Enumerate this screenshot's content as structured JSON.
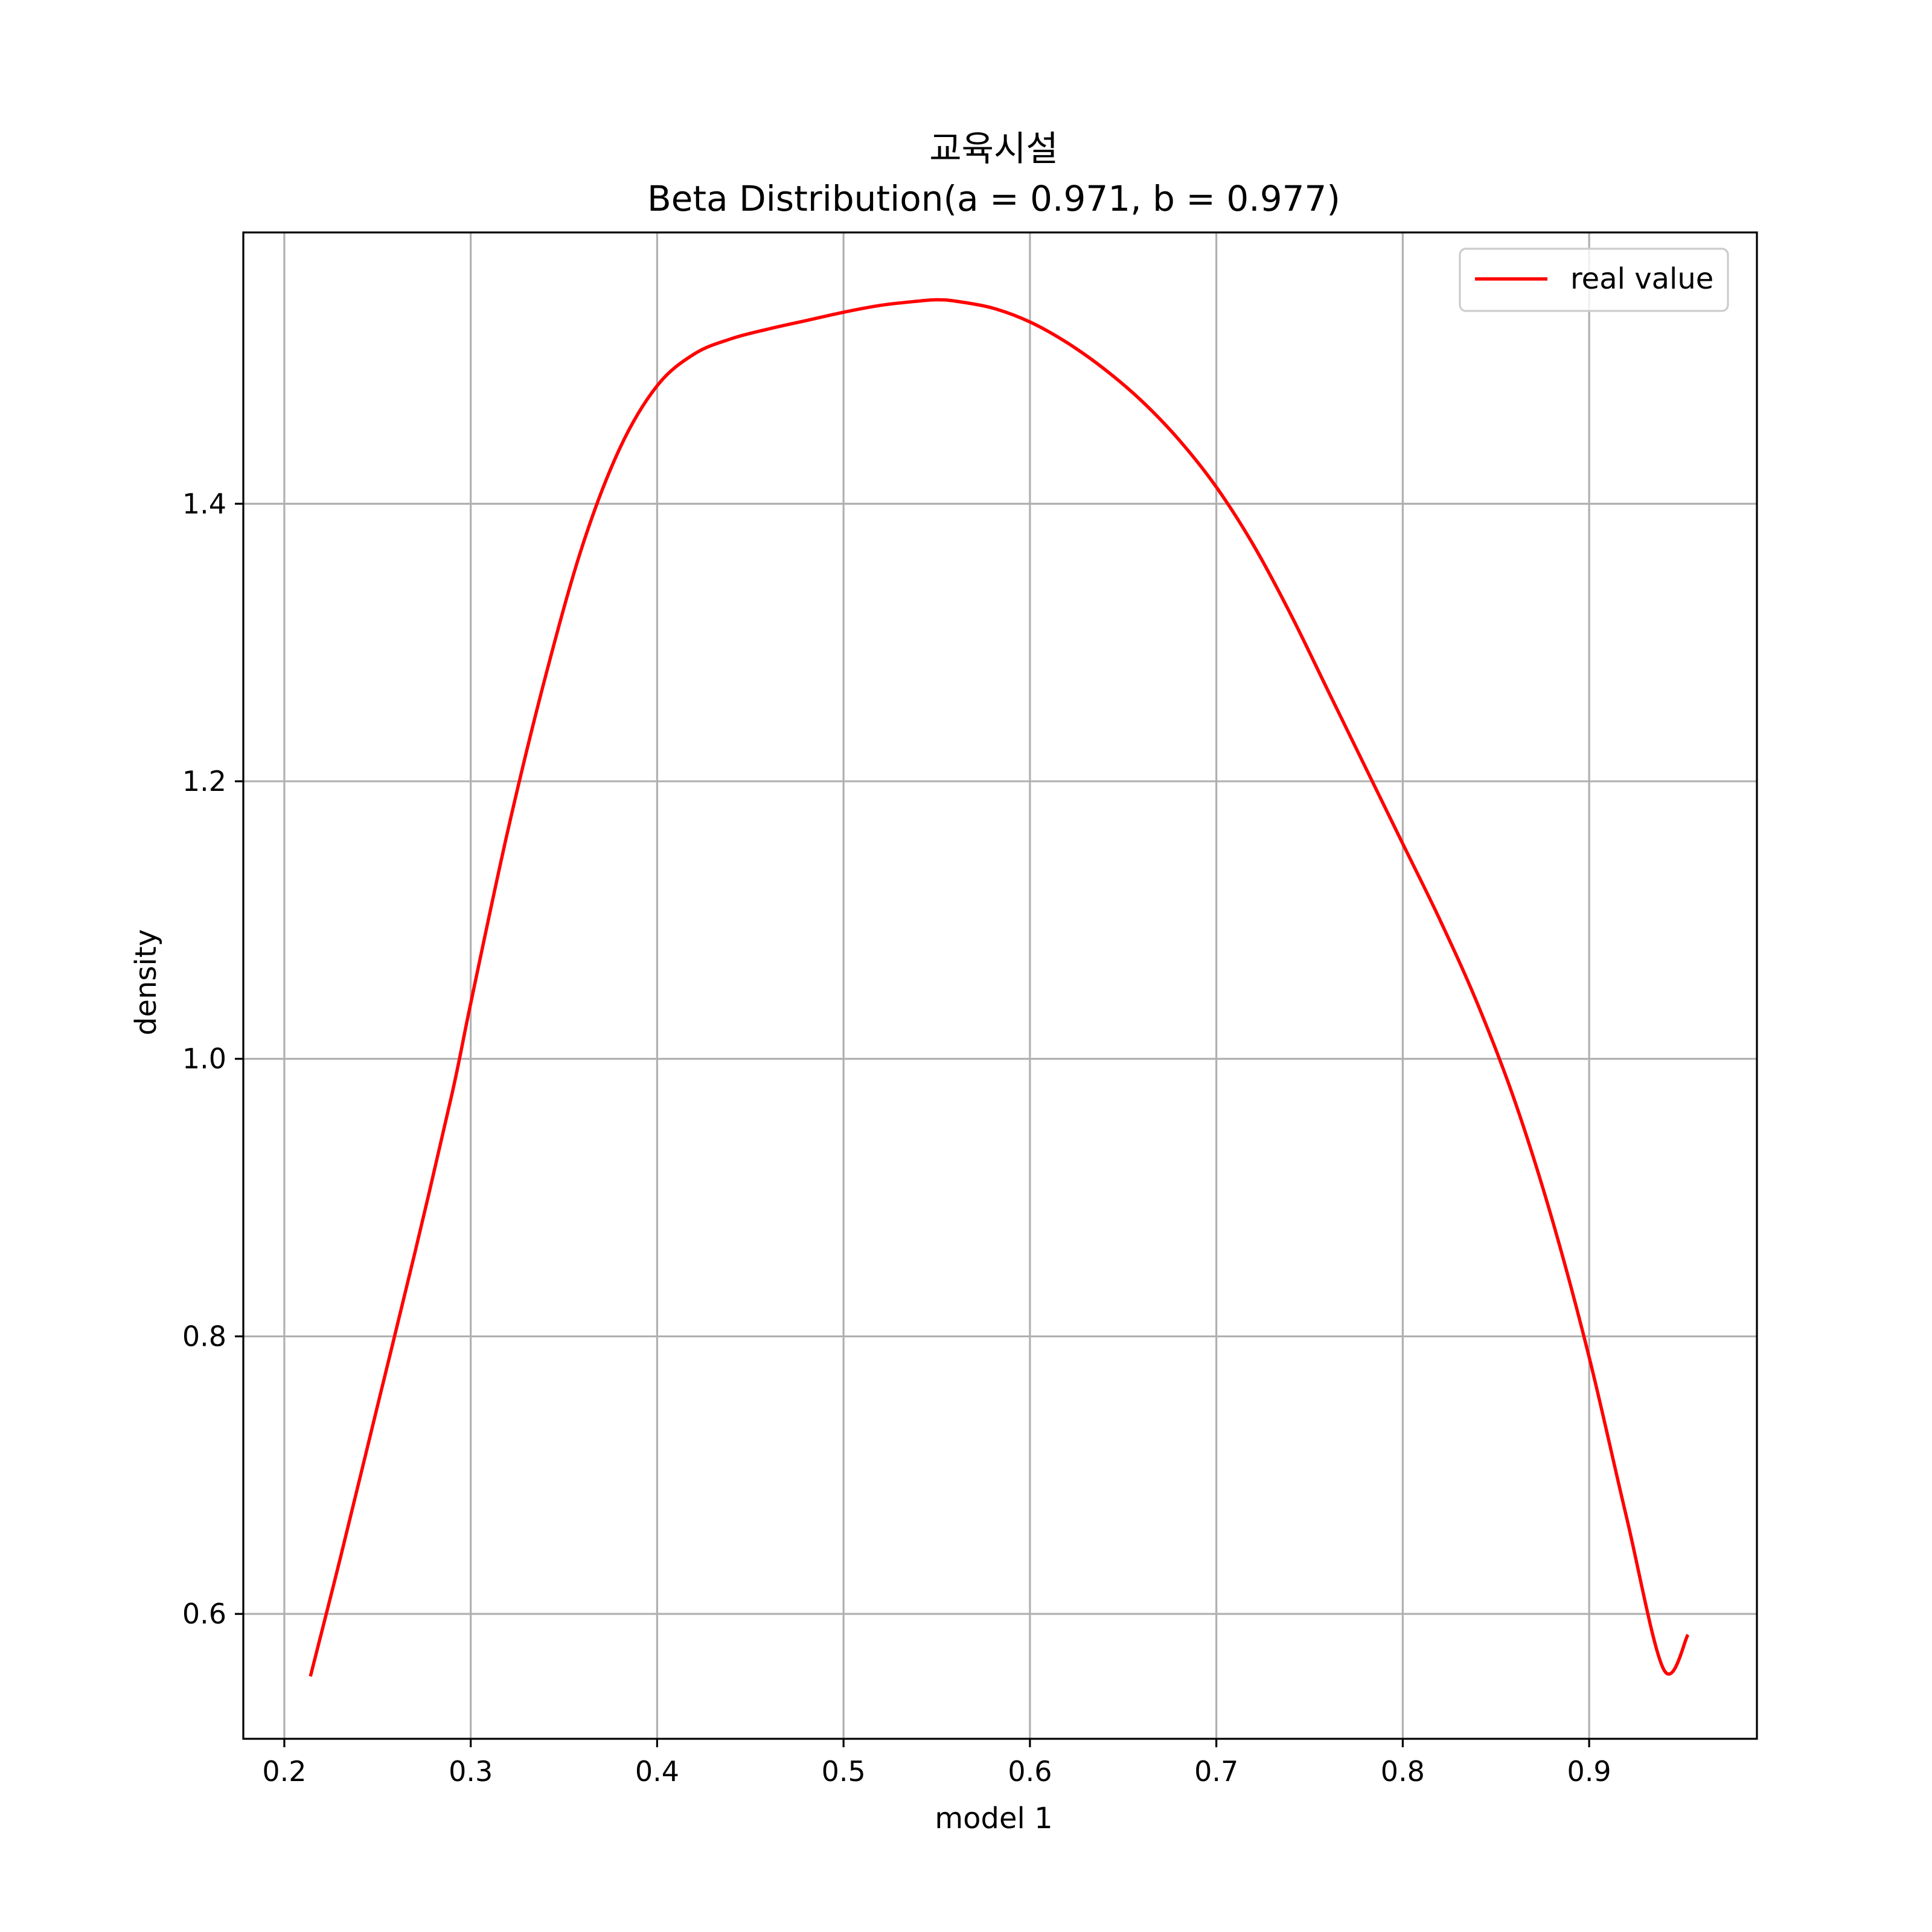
{
  "chart_data": {
    "type": "line",
    "title": "교육시설",
    "subtitle": "Beta Distribution(a = 0.971, b = 0.977)",
    "xlabel": "model 1",
    "ylabel": "density",
    "xlim": [
      0.178,
      0.99
    ],
    "ylim": [
      0.51,
      1.5955
    ],
    "xticks": [
      0.2,
      0.3,
      0.4,
      0.5,
      0.6,
      0.7,
      0.8,
      0.9
    ],
    "xtick_labels": [
      "0.2",
      "0.3",
      "0.4",
      "0.5",
      "0.6",
      "0.7",
      "0.8",
      "0.9"
    ],
    "yticks": [
      0.6,
      0.8,
      1.0,
      1.2,
      1.4
    ],
    "ytick_labels": [
      "0.6",
      "0.8",
      "1.0",
      "1.2",
      "1.4"
    ],
    "grid": true,
    "legend_position": "top-right",
    "series": [
      {
        "name": "real value",
        "color": "#ff0000",
        "x": [
          0.214,
          0.23,
          0.25,
          0.27,
          0.29,
          0.3,
          0.32,
          0.34,
          0.36,
          0.38,
          0.4,
          0.42,
          0.44,
          0.46,
          0.48,
          0.5,
          0.52,
          0.54,
          0.55,
          0.56,
          0.58,
          0.6,
          0.62,
          0.64,
          0.66,
          0.68,
          0.7,
          0.72,
          0.74,
          0.76,
          0.78,
          0.8,
          0.82,
          0.84,
          0.86,
          0.88,
          0.9,
          0.92,
          0.94,
          0.953
        ],
        "y": [
          0.555,
          0.64,
          0.75,
          0.86,
          0.975,
          1.04,
          1.165,
          1.275,
          1.37,
          1.44,
          1.485,
          1.508,
          1.519,
          1.526,
          1.532,
          1.538,
          1.543,
          1.546,
          1.547,
          1.546,
          1.541,
          1.531,
          1.516,
          1.497,
          1.474,
          1.446,
          1.412,
          1.37,
          1.32,
          1.265,
          1.21,
          1.155,
          1.1,
          1.04,
          0.97,
          0.885,
          0.785,
          0.67,
          0.56,
          0.585
        ]
      }
    ]
  }
}
